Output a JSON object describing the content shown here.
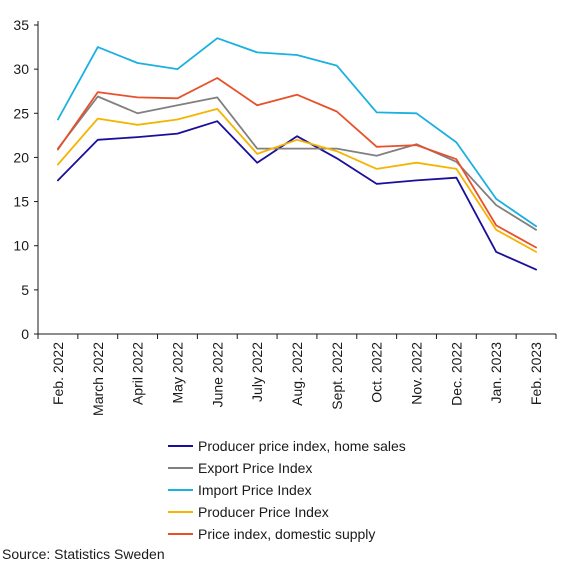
{
  "chart_data": {
    "type": "line",
    "categories": [
      "Feb. 2022",
      "March 2022",
      "April 2022",
      "May 2022",
      "June 2022",
      "July 2022",
      "Aug. 2022",
      "Sept. 2022",
      "Oct. 2022",
      "Nov. 2022",
      "Dec. 2022",
      "Jan. 2023",
      "Feb. 2023"
    ],
    "ylim": [
      0,
      35
    ],
    "yticks": [
      0,
      5,
      10,
      15,
      20,
      25,
      30,
      35
    ],
    "grid": false,
    "legend_position": "bottom",
    "series": [
      {
        "name": "Producer price index, home sales",
        "color": "#1a0f9c",
        "values": [
          17.4,
          22.0,
          22.3,
          22.7,
          24.1,
          19.4,
          22.4,
          19.9,
          17.0,
          17.4,
          17.7,
          9.3,
          7.3
        ]
      },
      {
        "name": "Export Price Index",
        "color": "#808080",
        "values": [
          21.0,
          26.9,
          25.0,
          25.9,
          26.8,
          21.0,
          21.0,
          21.0,
          20.2,
          21.5,
          19.5,
          14.6,
          11.8
        ]
      },
      {
        "name": "Import Price Index",
        "color": "#1ab0e0",
        "values": [
          24.3,
          32.5,
          30.7,
          30.0,
          33.5,
          31.9,
          31.6,
          30.4,
          25.1,
          25.0,
          21.7,
          15.3,
          12.2
        ]
      },
      {
        "name": "Producer Price Index",
        "color": "#f5b400",
        "values": [
          19.2,
          24.4,
          23.7,
          24.3,
          25.5,
          20.4,
          22.0,
          20.7,
          18.7,
          19.4,
          18.7,
          11.8,
          9.3
        ]
      },
      {
        "name": "Price index, domestic supply",
        "color": "#e8502a",
        "values": [
          20.9,
          27.4,
          26.8,
          26.7,
          29.0,
          25.9,
          27.1,
          25.2,
          21.2,
          21.4,
          19.8,
          12.3,
          9.8
        ]
      }
    ]
  },
  "source": "Source: Statistics Sweden"
}
